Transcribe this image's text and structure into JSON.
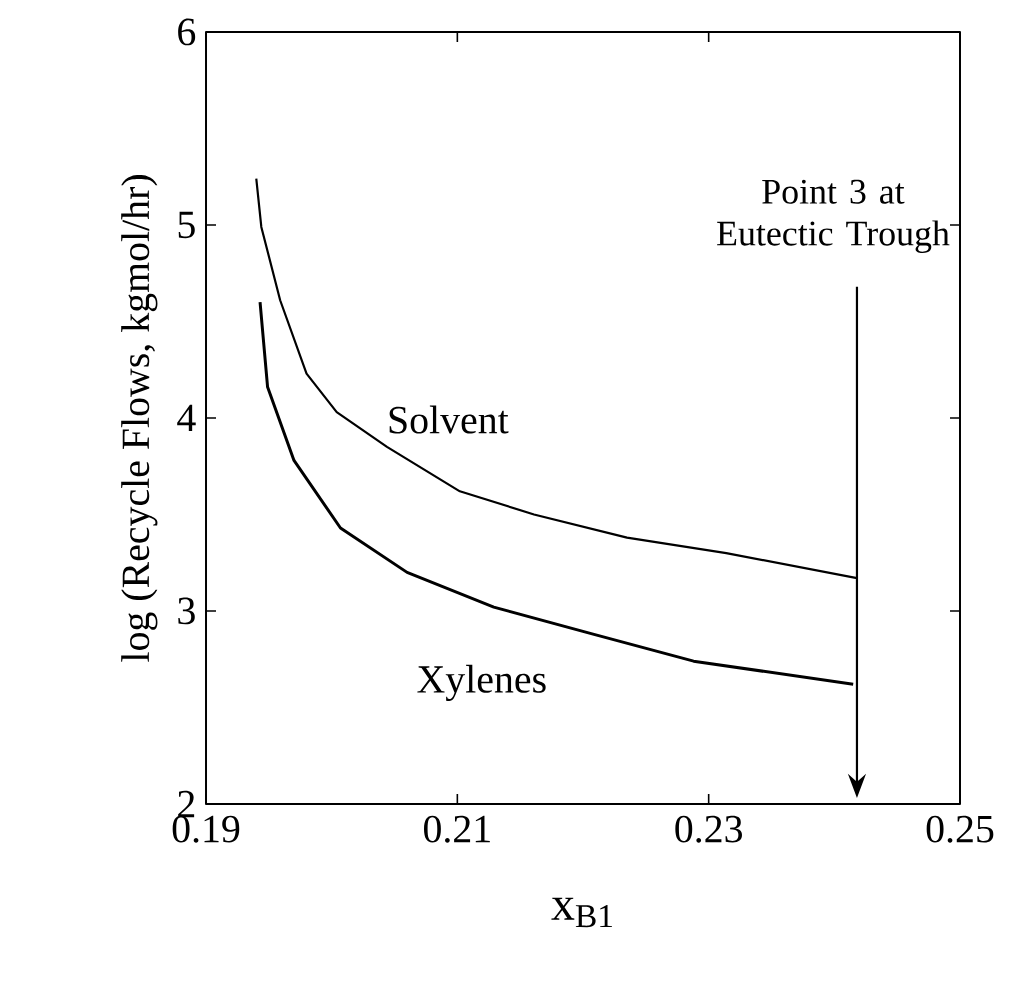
{
  "chart_data": {
    "type": "line",
    "xlabel": "x$_{B1}$",
    "ylabel": "log (Recycle Flows, kgmol/hr)",
    "xlim": [
      0.19,
      0.25
    ],
    "ylim": [
      2,
      6
    ],
    "xticks": [
      0.19,
      0.21,
      0.23,
      0.25
    ],
    "yticks": [
      2,
      3,
      4,
      5,
      6
    ],
    "grid": false,
    "legend": false,
    "marker": "none",
    "line_style": "solid",
    "series": [
      {
        "name": "Solvent",
        "color": "#000000",
        "x": [
          0.194,
          0.1944,
          0.1959,
          0.198,
          0.2004,
          0.2044,
          0.2102,
          0.2161,
          0.2235,
          0.2314,
          0.2418
        ],
        "values": [
          5.24,
          4.99,
          4.61,
          4.23,
          4.03,
          3.85,
          3.62,
          3.5,
          3.38,
          3.3,
          3.17
        ]
      },
      {
        "name": "Xylenes",
        "color": "#000000",
        "x": [
          0.1943,
          0.1949,
          0.197,
          0.2007,
          0.206,
          0.2129,
          0.2208,
          0.2288,
          0.2415
        ],
        "values": [
          4.6,
          4.16,
          3.78,
          3.43,
          3.2,
          3.02,
          2.88,
          2.74,
          2.62
        ]
      }
    ],
    "annotations": [
      "Point 3 at Eutectic Trough"
    ]
  }
}
